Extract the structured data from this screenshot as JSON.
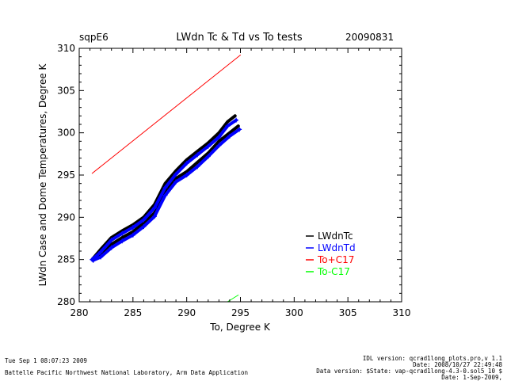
{
  "chart_data": {
    "type": "scatter",
    "site": "sqpE6",
    "title": "LWdn Tc & Td vs To tests",
    "date": "20090831",
    "xlabel": "To, Degree K",
    "ylabel": "LWdn Case and Dome Temperatures, Degree K",
    "xlim": [
      280,
      310
    ],
    "ylim": [
      280,
      310
    ],
    "xticks": [
      "280",
      "285",
      "290",
      "295",
      "300",
      "305",
      "310"
    ],
    "yticks": [
      "280",
      "285",
      "290",
      "295",
      "300",
      "305",
      "310"
    ],
    "legend_position": "right",
    "series": [
      {
        "name": "LWdnTc",
        "color": "#000000",
        "marker": "line",
        "legend_text_color": "#000000",
        "upper": [
          [
            281.2,
            285.0
          ],
          [
            282.0,
            286.2
          ],
          [
            283.0,
            287.6
          ],
          [
            284.0,
            288.4
          ],
          [
            285.0,
            289.1
          ],
          [
            286.0,
            290.0
          ],
          [
            287.0,
            291.5
          ],
          [
            288.0,
            294.0
          ],
          [
            289.0,
            295.5
          ],
          [
            290.0,
            296.8
          ],
          [
            291.0,
            297.8
          ],
          [
            292.0,
            298.8
          ],
          [
            293.0,
            300.0
          ],
          [
            293.8,
            301.3
          ],
          [
            294.5,
            302.0
          ]
        ],
        "lower": [
          [
            281.3,
            284.9
          ],
          [
            282.0,
            285.7
          ],
          [
            283.0,
            286.8
          ],
          [
            284.0,
            287.6
          ],
          [
            285.0,
            288.3
          ],
          [
            286.0,
            289.3
          ],
          [
            287.0,
            290.5
          ],
          [
            288.0,
            293.0
          ],
          [
            289.0,
            294.6
          ],
          [
            290.0,
            295.4
          ],
          [
            291.0,
            296.5
          ],
          [
            292.0,
            297.6
          ],
          [
            293.0,
            299.0
          ],
          [
            294.0,
            300.0
          ],
          [
            294.8,
            300.8
          ]
        ]
      },
      {
        "name": "LWdnTd",
        "color": "#0000ff",
        "marker": "plus",
        "legend_text_color": "#0000ff",
        "upper": [
          [
            281.2,
            285.0
          ],
          [
            282.0,
            285.9
          ],
          [
            283.0,
            287.3
          ],
          [
            284.0,
            288.1
          ],
          [
            285.0,
            288.8
          ],
          [
            286.0,
            289.7
          ],
          [
            287.0,
            291.1
          ],
          [
            288.0,
            293.5
          ],
          [
            289.0,
            295.1
          ],
          [
            290.0,
            296.4
          ],
          [
            291.0,
            297.4
          ],
          [
            292.0,
            298.4
          ],
          [
            293.0,
            299.5
          ],
          [
            293.8,
            300.8
          ],
          [
            294.6,
            301.5
          ]
        ],
        "lower": [
          [
            281.3,
            284.9
          ],
          [
            282.0,
            285.3
          ],
          [
            283.0,
            286.4
          ],
          [
            284.0,
            287.2
          ],
          [
            285.0,
            287.9
          ],
          [
            286.0,
            288.9
          ],
          [
            287.0,
            290.1
          ],
          [
            288.0,
            292.6
          ],
          [
            289.0,
            294.2
          ],
          [
            290.0,
            295.0
          ],
          [
            291.0,
            296.0
          ],
          [
            292.0,
            297.2
          ],
          [
            293.0,
            298.5
          ],
          [
            294.0,
            299.6
          ],
          [
            294.9,
            300.4
          ]
        ]
      },
      {
        "name": "To+C17",
        "color": "#ff0000",
        "marker": "line",
        "legend_text_color": "#ff0000",
        "points": [
          [
            281.2,
            295.2
          ],
          [
            295.0,
            309.2
          ]
        ]
      },
      {
        "name": "To-C17",
        "color": "#00ff00",
        "marker": "line",
        "legend_text_color": "#00ff00",
        "points": [
          [
            293.8,
            280.0
          ],
          [
            294.8,
            280.8
          ]
        ]
      }
    ]
  },
  "footer": {
    "run_time": "Tue Sep  1 08:07:23 2009",
    "institution": "Battelle Pacific Northwest National Laboratory, Arm Data Application",
    "idl_version": "IDL version: qcrad1long_plots.pro,v 1.1",
    "idl_date": "Date: 2008/10/27 22:49:48",
    "data_version": "Data version: $State: vap-qcrad1long-4.3-0.sol5_10 $",
    "data_date": "Date: 1-Sep-2009,"
  }
}
